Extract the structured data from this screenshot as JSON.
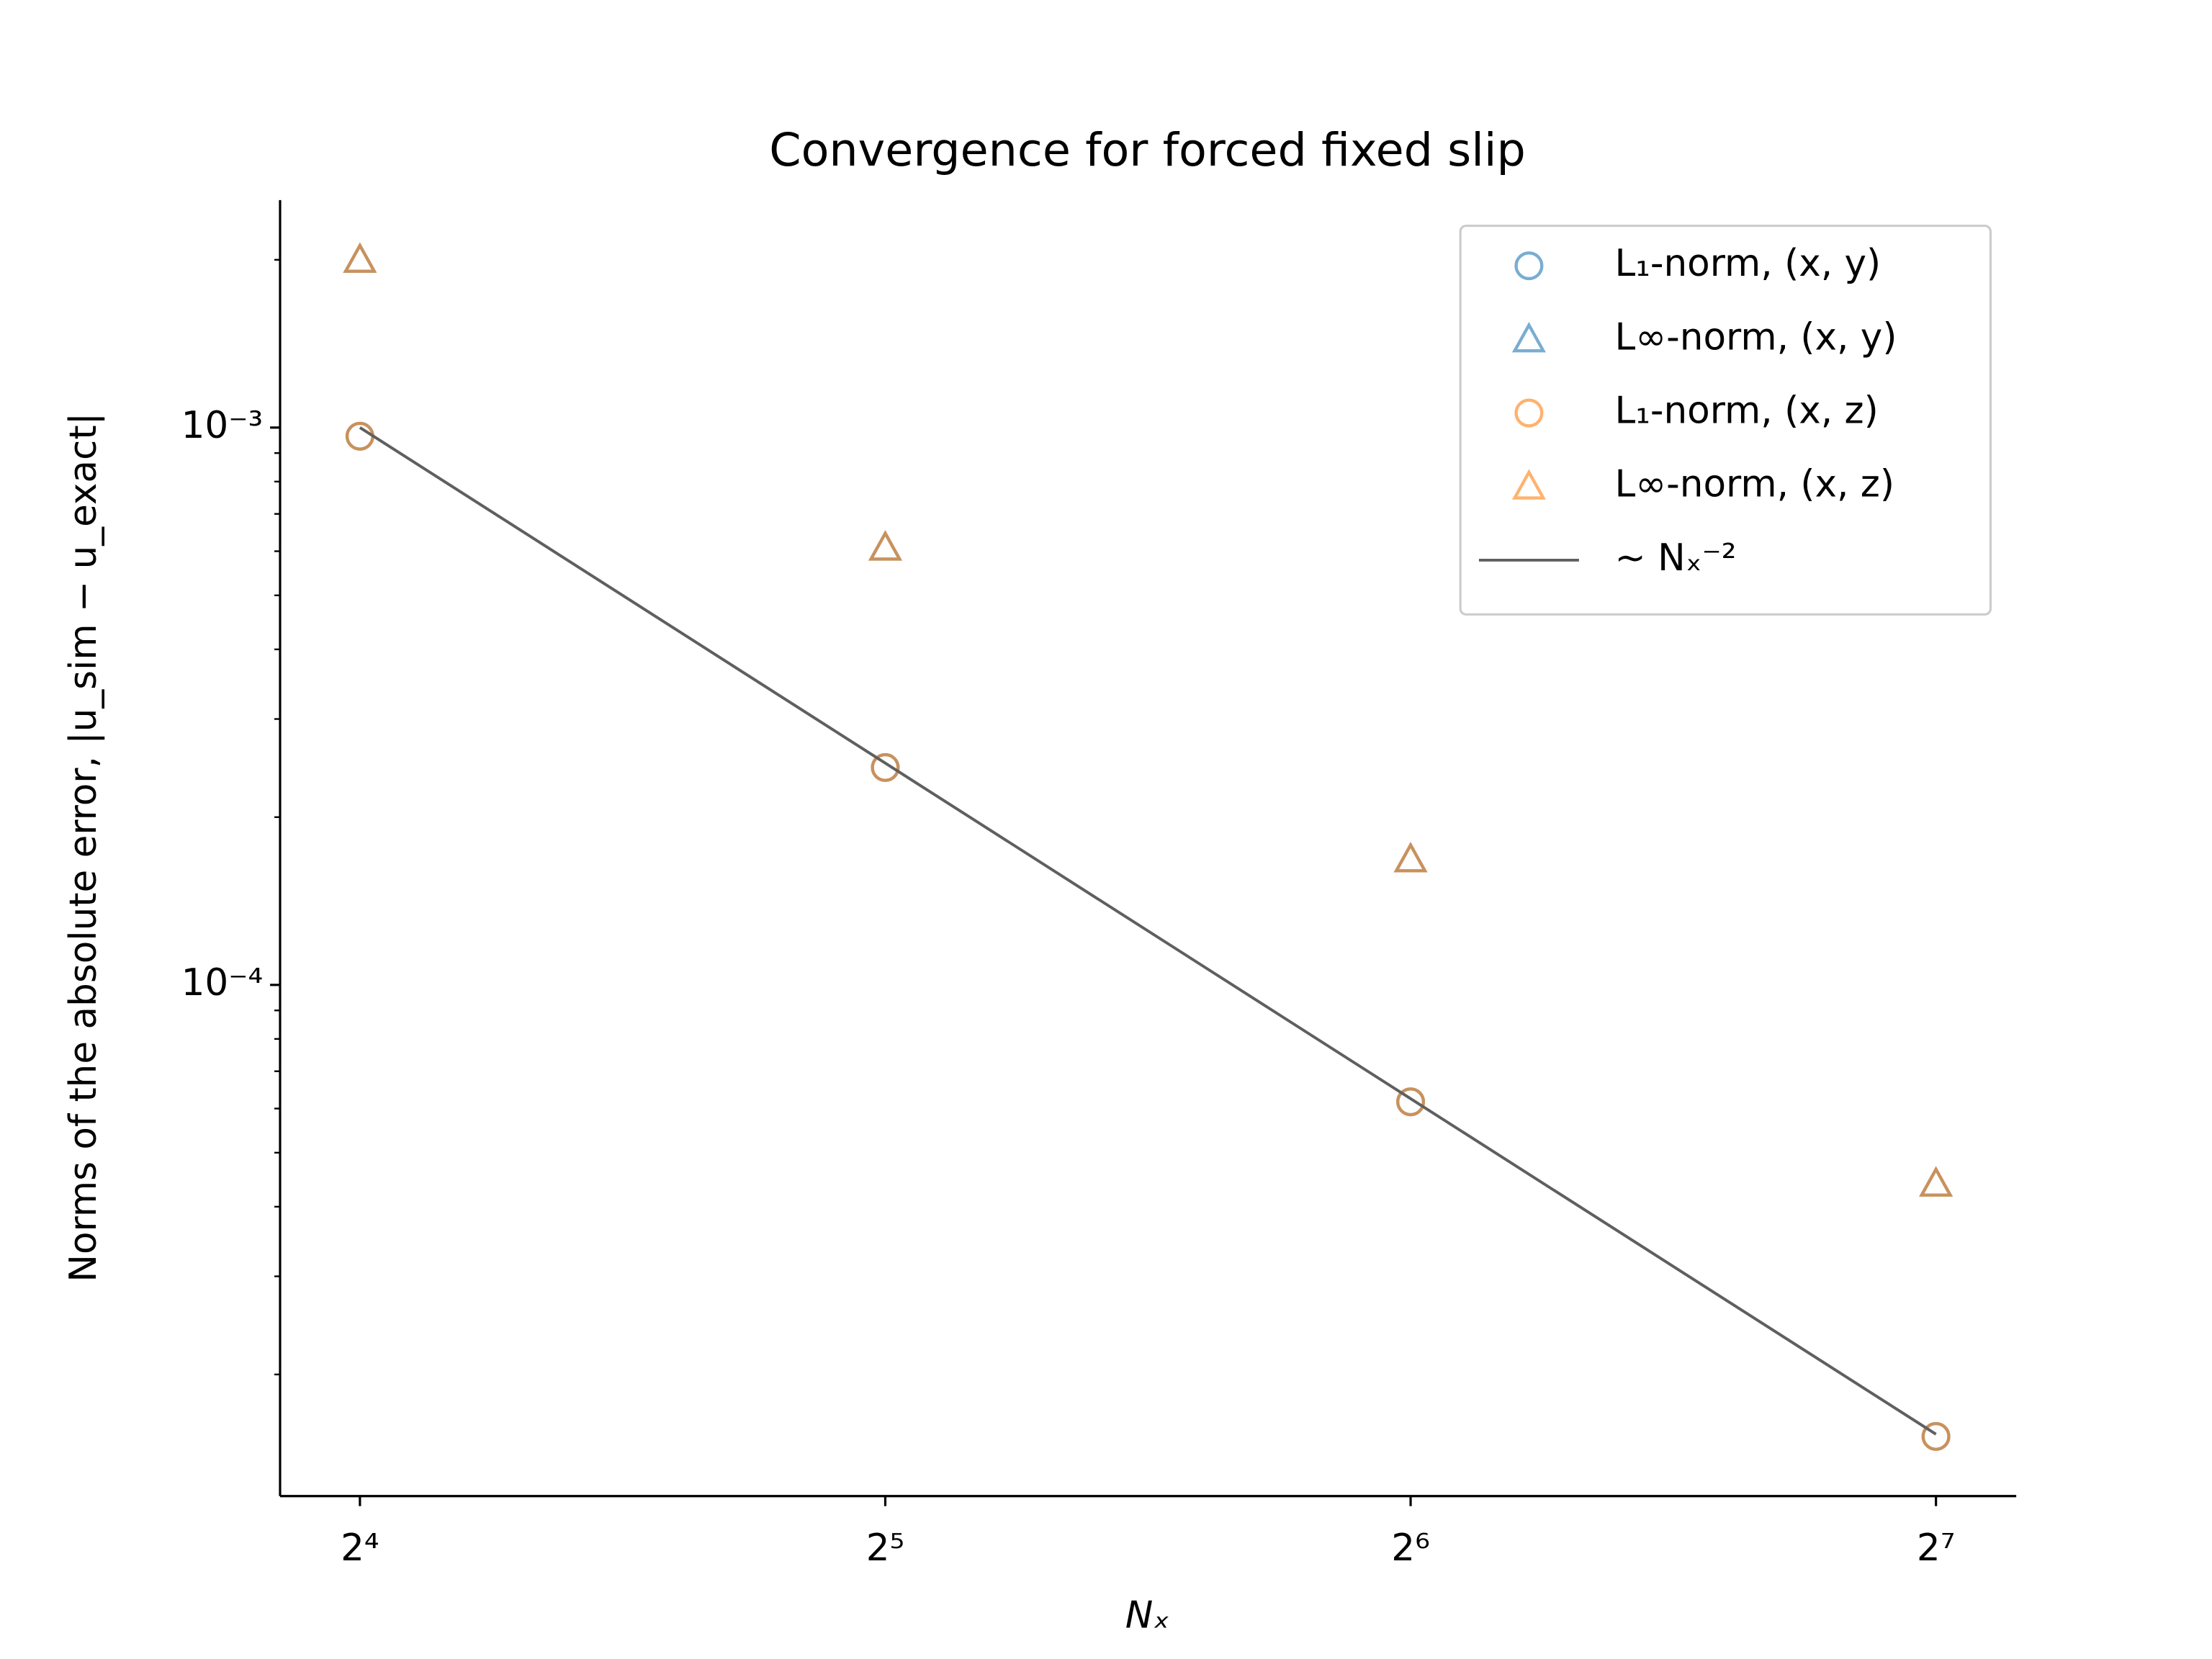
{
  "chart_data": {
    "type": "scatter",
    "title": "Convergence for forced fixed slip",
    "xlabel": "Nₓ",
    "ylabel": "Norms of the absolute error, |u_sim − u_exact|",
    "x": [
      16,
      32,
      64,
      128
    ],
    "xscale": "log",
    "yscale": "log",
    "xlim": [
      14.4,
      142.3
    ],
    "ylim": [
      1.21e-05,
      0.00256
    ],
    "xticks": [
      {
        "value": 16,
        "label": "2⁴"
      },
      {
        "value": 32,
        "label": "2⁵"
      },
      {
        "value": 64,
        "label": "2⁶"
      },
      {
        "value": 128,
        "label": "2⁷"
      }
    ],
    "yticks": [
      {
        "value": 0.0001,
        "label": "10⁻⁴"
      },
      {
        "value": 0.001,
        "label": "10⁻³"
      }
    ],
    "yminorticks": [
      2e-05,
      3e-05,
      4e-05,
      5e-05,
      6e-05,
      7e-05,
      8e-05,
      9e-05,
      0.0002,
      0.0003,
      0.0004,
      0.0005,
      0.0006,
      0.0007,
      0.0008,
      0.0009,
      0.002
    ],
    "legend": "upper right",
    "series": [
      {
        "name": "L₁-norm, (x, y)",
        "color": "#1f77b4",
        "opacity": 0.6,
        "marker": "circle",
        "values": [
          0.000965,
          0.0002455,
          6.17e-05,
          1.548e-05
        ]
      },
      {
        "name": "L∞-norm, (x, y)",
        "color": "#1f77b4",
        "opacity": 0.6,
        "marker": "triangle",
        "values": [
          0.002,
          0.000609,
          0.000168,
          4.4e-05
        ]
      },
      {
        "name": "L₁-norm, (x, z)",
        "color": "#ff7f0e",
        "opacity": 0.6,
        "marker": "circle",
        "values": [
          0.000965,
          0.0002455,
          6.17e-05,
          1.548e-05
        ]
      },
      {
        "name": "L∞-norm, (x, z)",
        "color": "#ff7f0e",
        "opacity": 0.6,
        "marker": "triangle",
        "values": [
          0.002,
          0.000609,
          0.000168,
          4.4e-05
        ]
      },
      {
        "name": "~ Nₓ⁻²",
        "color": "#5f5f5f",
        "opacity": 1,
        "marker": "line",
        "values": [
          0.001,
          0.00025,
          6.25e-05,
          1.5625e-05
        ]
      }
    ]
  }
}
